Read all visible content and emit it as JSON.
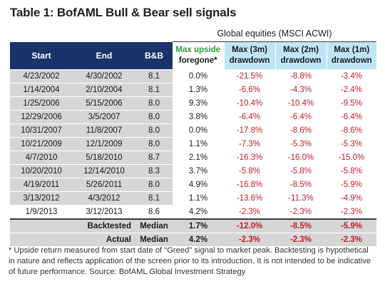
{
  "title": "Table 1: BofAML Bull & Bear sell signals",
  "group_header": "Global equities (MSCI ACWI)",
  "headers": {
    "start": "Start",
    "end": "End",
    "bb": "B&B",
    "upside_line1": "Max upside",
    "upside_line2": "foregone*",
    "dd3_line1": "Max (3m)",
    "dd3_line2": "drawdown",
    "dd2_line1": "Max (2m)",
    "dd2_line2": "drawdown",
    "dd1_line1": "Max (1m)",
    "dd1_line2": "drawdown"
  },
  "rows": [
    {
      "start": "4/23/2002",
      "end": "4/30/2002",
      "bb": "8.1",
      "upside": "0.0%",
      "dd3": "-21.5%",
      "dd2": "-8.8%",
      "dd1": "-3.4%"
    },
    {
      "start": "1/14/2004",
      "end": "2/10/2004",
      "bb": "8.1",
      "upside": "1.3%",
      "dd3": "-6.6%",
      "dd2": "-4.3%",
      "dd1": "-2.4%"
    },
    {
      "start": "1/25/2006",
      "end": "5/15/2006",
      "bb": "8.0",
      "upside": "9.3%",
      "dd3": "-10.4%",
      "dd2": "-10.4%",
      "dd1": "-9.5%"
    },
    {
      "start": "12/29/2006",
      "end": "3/5/2007",
      "bb": "8.0",
      "upside": "3.8%",
      "dd3": "-6.4%",
      "dd2": "-6.4%",
      "dd1": "-6.4%"
    },
    {
      "start": "10/31/2007",
      "end": "11/8/2007",
      "bb": "8.0",
      "upside": "0.0%",
      "dd3": "-17.8%",
      "dd2": "-8.6%",
      "dd1": "-8.6%"
    },
    {
      "start": "10/21/2009",
      "end": "12/1/2009",
      "bb": "8.0",
      "upside": "1.1%",
      "dd3": "-7.3%",
      "dd2": "-5.3%",
      "dd1": "-5.3%"
    },
    {
      "start": "4/7/2010",
      "end": "5/18/2010",
      "bb": "8.7",
      "upside": "2.1%",
      "dd3": "-16.3%",
      "dd2": "-16.0%",
      "dd1": "-15.0%"
    },
    {
      "start": "10/20/2010",
      "end": "12/14/2010",
      "bb": "8.3",
      "upside": "3.7%",
      "dd3": "-5.8%",
      "dd2": "-5.8%",
      "dd1": "-5.8%"
    },
    {
      "start": "4/19/2011",
      "end": "5/26/2011",
      "bb": "8.0",
      "upside": "4.9%",
      "dd3": "-16.8%",
      "dd2": "-8.5%",
      "dd1": "-5.9%"
    },
    {
      "start": "3/13/2012",
      "end": "4/3/2012",
      "bb": "8.1",
      "upside": "1.1%",
      "dd3": "-13.6%",
      "dd2": "-11.3%",
      "dd1": "-4.9%"
    },
    {
      "start": "1/9/2013",
      "end": "3/12/2013",
      "bb": "8.6",
      "upside": "4.2%",
      "dd3": "-2.3%",
      "dd2": "-2.3%",
      "dd1": "-2.3%"
    }
  ],
  "summary": [
    {
      "label": "Backtested",
      "stat": "Median",
      "upside": "1.7%",
      "dd3": "-12.0%",
      "dd2": "-8.5%",
      "dd1": "-5.9%"
    },
    {
      "label": "Actual",
      "stat": "Median",
      "upside": "4.2%",
      "dd3": "-2.3%",
      "dd2": "-2.3%",
      "dd1": "-2.3%"
    }
  ],
  "footnote": "* Upside return measured from start date of \"Greed\" signal to market peak. Backtesting is hypothetical in nature and reflects application of the screen prior to its introduction. It is not intended to be indicative of future performance. Source: BofAML Global Investment Strategy",
  "colors": {
    "header_dark": "#1a3368",
    "header_light": "#bfe6f7",
    "negative_red": "#c0202a",
    "row_grey": "#d6d6d6"
  }
}
